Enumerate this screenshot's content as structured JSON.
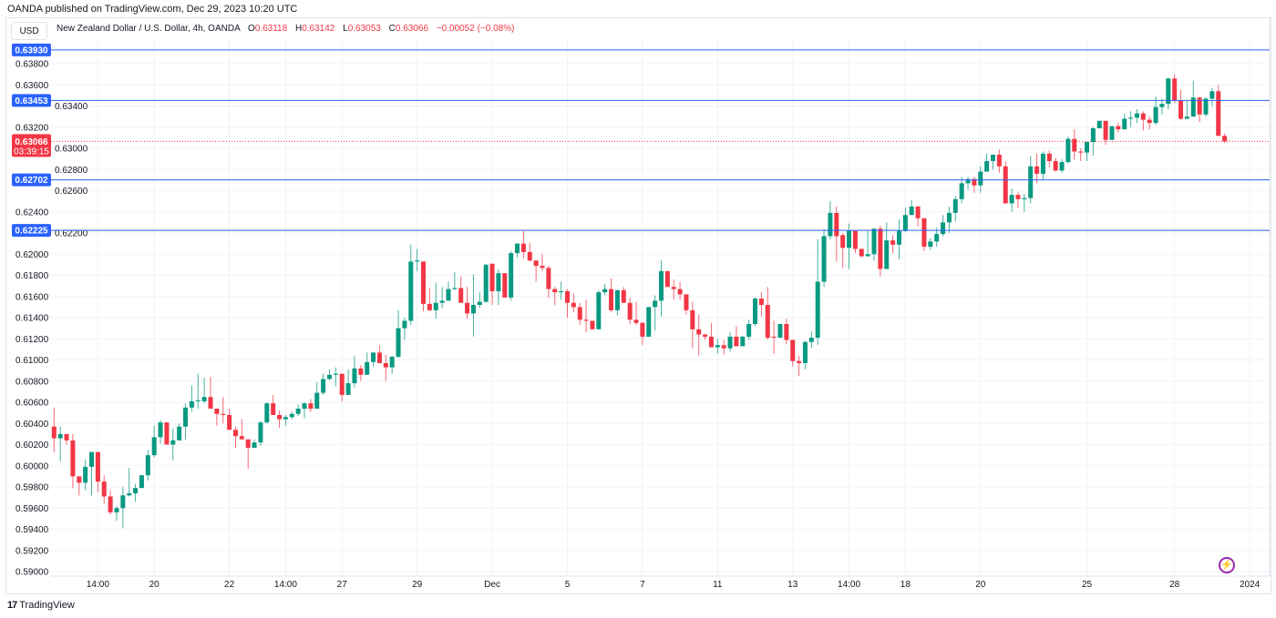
{
  "header": {
    "published": "OANDA published on TradingView.com, Dec 29, 2023 10:20 UTC",
    "currency_button": "USD",
    "symbol_title": "New Zealand Dollar / U.S. Dollar, 4h, OANDA",
    "ohlc": {
      "o_label": "O",
      "o": "0.63118",
      "h_label": "H",
      "h": "0.63142",
      "l_label": "L",
      "l": "0.63053",
      "c_label": "C",
      "c": "0.63066",
      "change": "−0.00052 (−0.08%)"
    }
  },
  "footer": {
    "brand": "TradingView",
    "logo_icon": "tradingview-logo-icon",
    "lightning_icon": "lightning-icon"
  },
  "colors": {
    "up": "#089981",
    "down": "#f23645",
    "level_line": "#2962ff",
    "grid": "#f0f3fa",
    "accent_purple": "#9c27b0"
  },
  "chart_data": {
    "type": "candlestick",
    "symbol": "NZD/USD",
    "interval": "4h",
    "price_axis_side": "left",
    "ylim": [
      0.589,
      0.6405
    ],
    "y_ticks": [
      "0.59000",
      "0.59200",
      "0.59400",
      "0.59600",
      "0.59800",
      "0.60000",
      "0.60200",
      "0.60400",
      "0.60600",
      "0.60800",
      "0.61000",
      "0.61200",
      "0.61400",
      "0.61600",
      "0.61800",
      "0.62000",
      "0.62200",
      "0.62400",
      "0.62600",
      "0.62800",
      "0.63000",
      "0.63200",
      "0.63400",
      "0.63600",
      "0.63800"
    ],
    "x_ticks": [
      {
        "label": "14:00",
        "bar": 7
      },
      {
        "label": "20",
        "bar": 16
      },
      {
        "label": "22",
        "bar": 28
      },
      {
        "label": "14:00",
        "bar": 37
      },
      {
        "label": "27",
        "bar": 46
      },
      {
        "label": "29",
        "bar": 58
      },
      {
        "label": "Dec",
        "bar": 70
      },
      {
        "label": "5",
        "bar": 82
      },
      {
        "label": "7",
        "bar": 94
      },
      {
        "label": "11",
        "bar": 106
      },
      {
        "label": "13",
        "bar": 118
      },
      {
        "label": "14:00",
        "bar": 127
      },
      {
        "label": "18",
        "bar": 136
      },
      {
        "label": "20",
        "bar": 148
      },
      {
        "label": "25",
        "bar": 165
      },
      {
        "label": "28",
        "bar": 179
      },
      {
        "label": "2024",
        "bar": 191
      }
    ],
    "horizontal_levels": [
      "0.63930",
      "0.63453",
      "0.62702",
      "0.62225"
    ],
    "current_price": {
      "price": "0.63066",
      "countdown": "03:39:15"
    },
    "grid": true,
    "candles_ohlc": [
      [
        0.6037,
        0.6055,
        0.6013,
        0.6026
      ],
      [
        0.6026,
        0.6037,
        0.6004,
        0.603
      ],
      [
        0.603,
        0.603,
        0.602,
        0.6024
      ],
      [
        0.6024,
        0.603,
        0.5979,
        0.599
      ],
      [
        0.599,
        0.599,
        0.5972,
        0.5984
      ],
      [
        0.5984,
        0.6006,
        0.5977,
        0.5999
      ],
      [
        0.5999,
        0.6013,
        0.5972,
        0.6013
      ],
      [
        0.6013,
        0.6013,
        0.5975,
        0.5985
      ],
      [
        0.5985,
        0.5991,
        0.5964,
        0.5971
      ],
      [
        0.5971,
        0.5977,
        0.5954,
        0.5956
      ],
      [
        0.5956,
        0.5962,
        0.5948,
        0.596
      ],
      [
        0.596,
        0.598,
        0.5941,
        0.5972
      ],
      [
        0.5972,
        0.5998,
        0.5971,
        0.5974
      ],
      [
        0.5974,
        0.5983,
        0.5966,
        0.5979
      ],
      [
        0.5979,
        0.5991,
        0.5979,
        0.5991
      ],
      [
        0.5991,
        0.6015,
        0.5986,
        0.601
      ],
      [
        0.601,
        0.6038,
        0.6008,
        0.6027
      ],
      [
        0.6027,
        0.6043,
        0.6021,
        0.6041
      ],
      [
        0.6041,
        0.6041,
        0.602,
        0.602
      ],
      [
        0.602,
        0.6035,
        0.6005,
        0.6024
      ],
      [
        0.6024,
        0.604,
        0.6024,
        0.6037
      ],
      [
        0.6037,
        0.6059,
        0.6025,
        0.6055
      ],
      [
        0.6055,
        0.6076,
        0.6051,
        0.6061
      ],
      [
        0.6061,
        0.6087,
        0.6054,
        0.6062
      ],
      [
        0.6061,
        0.6083,
        0.6059,
        0.6065
      ],
      [
        0.6065,
        0.6084,
        0.6054,
        0.6054
      ],
      [
        0.6054,
        0.6054,
        0.6038,
        0.6049
      ],
      [
        0.6049,
        0.6065,
        0.604,
        0.6048
      ],
      [
        0.6048,
        0.6054,
        0.6034,
        0.6034
      ],
      [
        0.6034,
        0.6037,
        0.6017,
        0.6028
      ],
      [
        0.6028,
        0.6044,
        0.6025,
        0.6025
      ],
      [
        0.6025,
        0.6025,
        0.5997,
        0.6017
      ],
      [
        0.6017,
        0.6025,
        0.6017,
        0.6022
      ],
      [
        0.6022,
        0.6042,
        0.6019,
        0.6041
      ],
      [
        0.6041,
        0.606,
        0.604,
        0.6059
      ],
      [
        0.6059,
        0.6067,
        0.6048,
        0.6048
      ],
      [
        0.6048,
        0.6052,
        0.6036,
        0.6044
      ],
      [
        0.6044,
        0.6048,
        0.6038,
        0.6046
      ],
      [
        0.6046,
        0.6051,
        0.6044,
        0.6049
      ],
      [
        0.6049,
        0.6058,
        0.6047,
        0.6054
      ],
      [
        0.6054,
        0.606,
        0.6045,
        0.6059
      ],
      [
        0.6059,
        0.6063,
        0.6051,
        0.6054
      ],
      [
        0.6054,
        0.6079,
        0.6054,
        0.6069
      ],
      [
        0.6069,
        0.6087,
        0.6067,
        0.6082
      ],
      [
        0.6082,
        0.6091,
        0.6081,
        0.6086
      ],
      [
        0.6086,
        0.6093,
        0.6075,
        0.6087
      ],
      [
        0.6087,
        0.6087,
        0.6061,
        0.6067
      ],
      [
        0.6067,
        0.6091,
        0.6067,
        0.6078
      ],
      [
        0.6078,
        0.6104,
        0.6074,
        0.6092
      ],
      [
        0.6092,
        0.6095,
        0.608,
        0.6086
      ],
      [
        0.6086,
        0.6107,
        0.6086,
        0.6098
      ],
      [
        0.6098,
        0.6107,
        0.6094,
        0.6107
      ],
      [
        0.6107,
        0.6114,
        0.6097,
        0.6097
      ],
      [
        0.6097,
        0.6105,
        0.608,
        0.6093
      ],
      [
        0.6093,
        0.6104,
        0.6087,
        0.6103
      ],
      [
        0.6103,
        0.6147,
        0.6102,
        0.613
      ],
      [
        0.613,
        0.614,
        0.6119,
        0.6137
      ],
      [
        0.6137,
        0.6209,
        0.6133,
        0.6193
      ],
      [
        0.6193,
        0.6205,
        0.6184,
        0.6194
      ],
      [
        0.6193,
        0.6193,
        0.6146,
        0.6153
      ],
      [
        0.6153,
        0.6168,
        0.6146,
        0.6147
      ],
      [
        0.6147,
        0.6173,
        0.6139,
        0.6154
      ],
      [
        0.6154,
        0.6169,
        0.6149,
        0.6156
      ],
      [
        0.6156,
        0.6174,
        0.6156,
        0.6167
      ],
      [
        0.6167,
        0.6183,
        0.6166,
        0.6168
      ],
      [
        0.6168,
        0.6179,
        0.6154,
        0.6154
      ],
      [
        0.6154,
        0.6169,
        0.6139,
        0.6144
      ],
      [
        0.6144,
        0.6181,
        0.6122,
        0.6152
      ],
      [
        0.6152,
        0.6164,
        0.6149,
        0.6155
      ],
      [
        0.6155,
        0.6191,
        0.6154,
        0.619
      ],
      [
        0.6191,
        0.6191,
        0.6152,
        0.6165
      ],
      [
        0.6165,
        0.6186,
        0.6152,
        0.6182
      ],
      [
        0.6182,
        0.6182,
        0.6159,
        0.6159
      ],
      [
        0.6159,
        0.6203,
        0.6156,
        0.6201
      ],
      [
        0.6201,
        0.621,
        0.6197,
        0.621
      ],
      [
        0.621,
        0.6222,
        0.6196,
        0.6202
      ],
      [
        0.6202,
        0.6211,
        0.6193,
        0.6194
      ],
      [
        0.6194,
        0.6194,
        0.6174,
        0.6189
      ],
      [
        0.6189,
        0.62,
        0.6184,
        0.6187
      ],
      [
        0.6187,
        0.6189,
        0.6159,
        0.6167
      ],
      [
        0.6167,
        0.6169,
        0.6152,
        0.6164
      ],
      [
        0.6164,
        0.6174,
        0.6157,
        0.6165
      ],
      [
        0.6165,
        0.6167,
        0.614,
        0.6154
      ],
      [
        0.6154,
        0.6163,
        0.6145,
        0.615
      ],
      [
        0.615,
        0.6154,
        0.6133,
        0.6138
      ],
      [
        0.6138,
        0.6157,
        0.6126,
        0.6137
      ],
      [
        0.6137,
        0.6137,
        0.6129,
        0.6129
      ],
      [
        0.6129,
        0.6166,
        0.6129,
        0.6164
      ],
      [
        0.6164,
        0.6172,
        0.6161,
        0.6167
      ],
      [
        0.6167,
        0.6177,
        0.6145,
        0.6147
      ],
      [
        0.6147,
        0.6166,
        0.6142,
        0.6166
      ],
      [
        0.6166,
        0.6169,
        0.6154,
        0.6154
      ],
      [
        0.6154,
        0.6159,
        0.6134,
        0.6138
      ],
      [
        0.6138,
        0.6155,
        0.6133,
        0.6135
      ],
      [
        0.6135,
        0.6136,
        0.6114,
        0.6122
      ],
      [
        0.6122,
        0.615,
        0.6122,
        0.615
      ],
      [
        0.615,
        0.6161,
        0.6128,
        0.6156
      ],
      [
        0.6156,
        0.6194,
        0.6141,
        0.6184
      ],
      [
        0.6184,
        0.6184,
        0.6169,
        0.6169
      ],
      [
        0.6169,
        0.6176,
        0.6157,
        0.6167
      ],
      [
        0.6167,
        0.6174,
        0.6157,
        0.6162
      ],
      [
        0.6162,
        0.6162,
        0.6143,
        0.6147
      ],
      [
        0.6147,
        0.6155,
        0.6111,
        0.6129
      ],
      [
        0.6129,
        0.6143,
        0.6104,
        0.6124
      ],
      [
        0.6124,
        0.6125,
        0.6119,
        0.6122
      ],
      [
        0.6122,
        0.6135,
        0.6112,
        0.6112
      ],
      [
        0.6112,
        0.612,
        0.6106,
        0.6114
      ],
      [
        0.6114,
        0.6119,
        0.6105,
        0.6111
      ],
      [
        0.6111,
        0.6126,
        0.6108,
        0.6122
      ],
      [
        0.6122,
        0.6132,
        0.6113,
        0.6113
      ],
      [
        0.6113,
        0.6123,
        0.6113,
        0.6122
      ],
      [
        0.6122,
        0.6138,
        0.6119,
        0.6134
      ],
      [
        0.6134,
        0.6159,
        0.6132,
        0.6158
      ],
      [
        0.6158,
        0.6164,
        0.6141,
        0.6152
      ],
      [
        0.6152,
        0.6169,
        0.6119,
        0.6121
      ],
      [
        0.6122,
        0.6137,
        0.6106,
        0.6121
      ],
      [
        0.6121,
        0.6134,
        0.6121,
        0.6134
      ],
      [
        0.6134,
        0.6139,
        0.6115,
        0.6119
      ],
      [
        0.6119,
        0.6119,
        0.6094,
        0.6099
      ],
      [
        0.6099,
        0.6104,
        0.6085,
        0.6097
      ],
      [
        0.6097,
        0.6118,
        0.6091,
        0.6117
      ],
      [
        0.6117,
        0.6127,
        0.6111,
        0.6121
      ],
      [
        0.6121,
        0.6214,
        0.6114,
        0.6174
      ],
      [
        0.6174,
        0.6224,
        0.6169,
        0.6217
      ],
      [
        0.6217,
        0.625,
        0.6214,
        0.6239
      ],
      [
        0.6239,
        0.6245,
        0.6193,
        0.6217
      ],
      [
        0.6218,
        0.622,
        0.6187,
        0.6206
      ],
      [
        0.6206,
        0.6229,
        0.6186,
        0.6222
      ],
      [
        0.6222,
        0.6222,
        0.6201,
        0.6205
      ],
      [
        0.6205,
        0.6205,
        0.6197,
        0.6198
      ],
      [
        0.6198,
        0.6222,
        0.6198,
        0.62
      ],
      [
        0.62,
        0.6225,
        0.6194,
        0.6224
      ],
      [
        0.6224,
        0.6227,
        0.6179,
        0.6186
      ],
      [
        0.6186,
        0.623,
        0.6186,
        0.6213
      ],
      [
        0.6213,
        0.6218,
        0.6201,
        0.6209
      ],
      [
        0.6209,
        0.6233,
        0.6195,
        0.6222
      ],
      [
        0.6222,
        0.6244,
        0.6221,
        0.6237
      ],
      [
        0.6237,
        0.6251,
        0.6237,
        0.6245
      ],
      [
        0.6245,
        0.6246,
        0.6226,
        0.6234
      ],
      [
        0.6234,
        0.6234,
        0.6203,
        0.6207
      ],
      [
        0.6207,
        0.6215,
        0.6204,
        0.6212
      ],
      [
        0.6212,
        0.6225,
        0.6207,
        0.6219
      ],
      [
        0.6219,
        0.6237,
        0.6217,
        0.623
      ],
      [
        0.623,
        0.6245,
        0.622,
        0.6239
      ],
      [
        0.6239,
        0.6255,
        0.6231,
        0.6252
      ],
      [
        0.6252,
        0.6273,
        0.6248,
        0.6267
      ],
      [
        0.6267,
        0.6273,
        0.6261,
        0.6271
      ],
      [
        0.6271,
        0.6273,
        0.6258,
        0.6265
      ],
      [
        0.6265,
        0.6283,
        0.6258,
        0.6278
      ],
      [
        0.6278,
        0.6295,
        0.6278,
        0.6288
      ],
      [
        0.6288,
        0.6294,
        0.628,
        0.6294
      ],
      [
        0.6294,
        0.6299,
        0.6277,
        0.6283
      ],
      [
        0.6283,
        0.6288,
        0.6248,
        0.6248
      ],
      [
        0.6248,
        0.6262,
        0.624,
        0.6256
      ],
      [
        0.6256,
        0.6259,
        0.6244,
        0.6252
      ],
      [
        0.6252,
        0.6257,
        0.624,
        0.6253
      ],
      [
        0.6253,
        0.6293,
        0.6248,
        0.6283
      ],
      [
        0.6283,
        0.6295,
        0.6267,
        0.6276
      ],
      [
        0.6276,
        0.6297,
        0.627,
        0.6295
      ],
      [
        0.6295,
        0.6298,
        0.6282,
        0.6288
      ],
      [
        0.6288,
        0.6291,
        0.6278,
        0.6279
      ],
      [
        0.6279,
        0.629,
        0.6277,
        0.6287
      ],
      [
        0.6287,
        0.6311,
        0.6286,
        0.6309
      ],
      [
        0.6309,
        0.6318,
        0.6289,
        0.6297
      ],
      [
        0.6297,
        0.63,
        0.6288,
        0.6296
      ],
      [
        0.6296,
        0.6306,
        0.6288,
        0.6306
      ],
      [
        0.6306,
        0.632,
        0.6293,
        0.6319
      ],
      [
        0.6319,
        0.6326,
        0.6319,
        0.6326
      ],
      [
        0.6326,
        0.6326,
        0.6303,
        0.6308
      ],
      [
        0.6308,
        0.6321,
        0.6308,
        0.6321
      ],
      [
        0.6321,
        0.6324,
        0.6315,
        0.6318
      ],
      [
        0.6318,
        0.6333,
        0.6318,
        0.6328
      ],
      [
        0.6328,
        0.6335,
        0.632,
        0.6329
      ],
      [
        0.6329,
        0.6337,
        0.6324,
        0.6333
      ],
      [
        0.6333,
        0.6335,
        0.6317,
        0.6327
      ],
      [
        0.6327,
        0.633,
        0.6318,
        0.6324
      ],
      [
        0.6324,
        0.6349,
        0.6322,
        0.6339
      ],
      [
        0.6339,
        0.6347,
        0.6332,
        0.6342
      ],
      [
        0.6342,
        0.6367,
        0.6337,
        0.6366
      ],
      [
        0.6366,
        0.637,
        0.6343,
        0.6345
      ],
      [
        0.6345,
        0.6355,
        0.6327,
        0.6328
      ],
      [
        0.6328,
        0.6345,
        0.6328,
        0.633
      ],
      [
        0.633,
        0.6364,
        0.633,
        0.6348
      ],
      [
        0.6348,
        0.6349,
        0.6325,
        0.6332
      ],
      [
        0.6332,
        0.6348,
        0.633,
        0.6347
      ],
      [
        0.6347,
        0.6357,
        0.634,
        0.6354
      ],
      [
        0.6354,
        0.636,
        0.63118,
        0.63118
      ],
      [
        0.63118,
        0.63142,
        0.63053,
        0.63066
      ]
    ]
  }
}
